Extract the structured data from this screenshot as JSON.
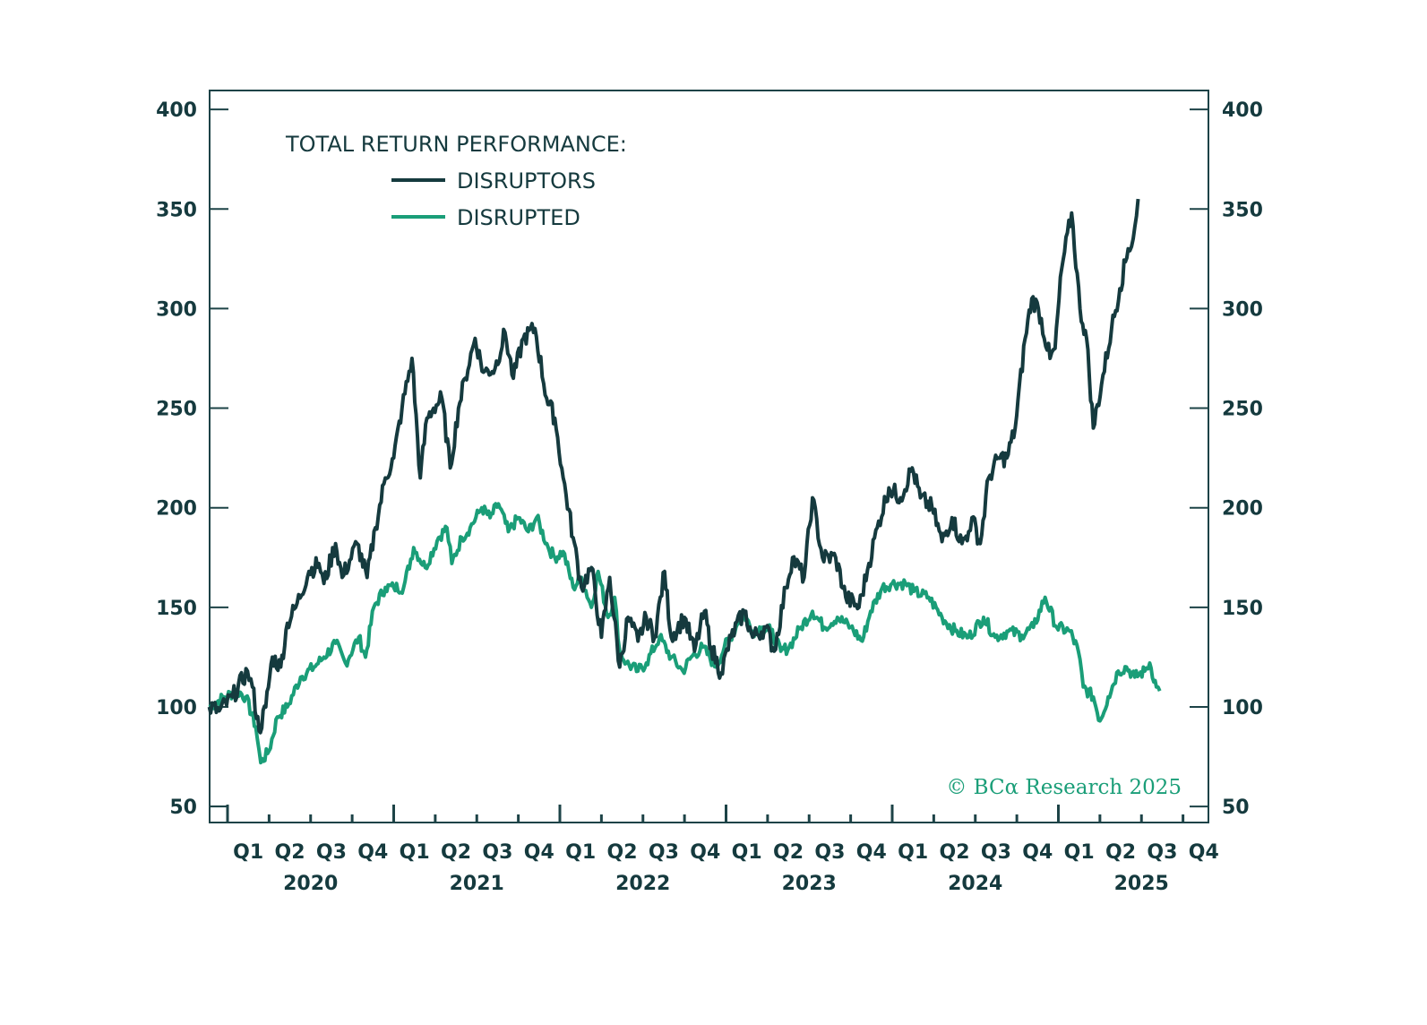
{
  "chart_data": {
    "type": "line",
    "title": "TOTAL RETURN PERFORMANCE:",
    "xlabel": "",
    "ylabel": "",
    "ylim": [
      50,
      400
    ],
    "yticks": [
      50,
      100,
      150,
      200,
      250,
      300,
      350,
      400
    ],
    "yticks_right": [
      50,
      100,
      150,
      200,
      250,
      300,
      350,
      400
    ],
    "xlim": [
      2019.89,
      2025.9
    ],
    "x_unit": "decimal year",
    "x_quarter_labels": [
      "Q1",
      "Q2",
      "Q3",
      "Q4",
      "Q1",
      "Q2",
      "Q3",
      "Q4",
      "Q1",
      "Q2",
      "Q3",
      "Q4",
      "Q1",
      "Q2",
      "Q3",
      "Q4",
      "Q1",
      "Q2",
      "Q3",
      "Q4",
      "Q1",
      "Q2",
      "Q3",
      "Q4"
    ],
    "x_year_labels": [
      "2020",
      "2021",
      "2022",
      "2023",
      "2024",
      "2025"
    ],
    "grid": false,
    "legend": {
      "placement": "top-left",
      "title": "TOTAL RETURN PERFORMANCE:",
      "entries": [
        "DISRUPTORS",
        "DISRUPTED"
      ]
    },
    "annotation": "© BCα Research 2025",
    "colors": {
      "disruptors": "#153a3e",
      "disrupted": "#1a9e78",
      "axis": "#1d4347"
    },
    "series": [
      {
        "name": "DISRUPTORS",
        "x": [
          2019.89,
          2019.95,
          2020.03,
          2020.12,
          2020.15,
          2020.19,
          2020.23,
          2020.27,
          2020.32,
          2020.36,
          2020.41,
          2020.49,
          2020.55,
          2020.58,
          2020.65,
          2020.69,
          2020.78,
          2020.84,
          2020.89,
          2020.95,
          2021.0,
          2021.05,
          2021.11,
          2021.16,
          2021.2,
          2021.24,
          2021.29,
          2021.34,
          2021.39,
          2021.43,
          2021.49,
          2021.54,
          2021.61,
          2021.67,
          2021.72,
          2021.78,
          2021.85,
          2021.92,
          2021.97,
          2022.02,
          2022.08,
          2022.13,
          2022.19,
          2022.25,
          2022.3,
          2022.36,
          2022.41,
          2022.47,
          2022.52,
          2022.57,
          2022.63,
          2022.67,
          2022.75,
          2022.81,
          2022.87,
          2022.91,
          2022.97,
          2023.03,
          2023.11,
          2023.16,
          2023.24,
          2023.29,
          2023.36,
          2023.4,
          2023.47,
          2023.52,
          2023.58,
          2023.66,
          2023.72,
          2023.8,
          2023.86,
          2023.91,
          2023.98,
          2024.05,
          2024.12,
          2024.17,
          2024.24,
          2024.3,
          2024.36,
          2024.42,
          2024.46,
          2024.48,
          2024.53,
          2024.58,
          2024.64,
          2024.69,
          2024.74,
          2024.8,
          2024.84,
          2024.88,
          2024.95,
          2024.98,
          2025.02,
          2025.08,
          2025.13,
          2025.17,
          2025.21,
          2025.26,
          2025.32,
          2025.37,
          2025.42,
          2025.45,
          2025.48
        ],
        "y": [
          100,
          98,
          105,
          118,
          110,
          88,
          100,
          125,
          120,
          142,
          150,
          168,
          172,
          162,
          182,
          165,
          182,
          165,
          190,
          215,
          225,
          250,
          275,
          215,
          245,
          250,
          255,
          220,
          250,
          265,
          285,
          268,
          270,
          288,
          265,
          285,
          290,
          255,
          245,
          215,
          185,
          160,
          170,
          135,
          165,
          120,
          145,
          133,
          145,
          135,
          168,
          135,
          145,
          128,
          148,
          130,
          117,
          135,
          148,
          135,
          140,
          128,
          160,
          175,
          165,
          205,
          175,
          175,
          155,
          150,
          172,
          190,
          210,
          205,
          220,
          205,
          200,
          183,
          195,
          182,
          188,
          195,
          182,
          215,
          225,
          225,
          240,
          285,
          305,
          300,
          275,
          280,
          320,
          348,
          300,
          285,
          240,
          262,
          290,
          310,
          330,
          335,
          355
        ]
      },
      {
        "name": "DISRUPTED",
        "x": [
          2019.89,
          2019.98,
          2020.06,
          2020.11,
          2020.17,
          2020.2,
          2020.25,
          2020.3,
          2020.36,
          2020.44,
          2020.52,
          2020.58,
          2020.65,
          2020.71,
          2020.79,
          2020.83,
          2020.88,
          2020.95,
          2021.0,
          2021.06,
          2021.12,
          2021.19,
          2021.27,
          2021.32,
          2021.35,
          2021.41,
          2021.46,
          2021.53,
          2021.58,
          2021.63,
          2021.69,
          2021.75,
          2021.81,
          2021.86,
          2021.93,
          2021.97,
          2022.02,
          2022.08,
          2022.13,
          2022.19,
          2022.23,
          2022.29,
          2022.33,
          2022.36,
          2022.4,
          2022.47,
          2022.52,
          2022.6,
          2022.67,
          2022.74,
          2022.79,
          2022.86,
          2022.94,
          2022.99,
          2023.06,
          2023.1,
          2023.16,
          2023.22,
          2023.27,
          2023.33,
          2023.38,
          2023.45,
          2023.52,
          2023.59,
          2023.67,
          2023.75,
          2023.82,
          2023.87,
          2023.94,
          2024.0,
          2024.08,
          2024.13,
          2024.22,
          2024.3,
          2024.38,
          2024.46,
          2024.55,
          2024.62,
          2024.7,
          2024.78,
          2024.85,
          2024.92,
          2024.99,
          2025.07,
          2025.12,
          2025.15,
          2025.21,
          2025.25,
          2025.3,
          2025.36,
          2025.41,
          2025.46,
          2025.52,
          2025.55,
          2025.59,
          2025.61
        ],
        "y": [
          100,
          105,
          108,
          105,
          90,
          72,
          78,
          95,
          100,
          115,
          120,
          125,
          132,
          122,
          135,
          125,
          150,
          160,
          160,
          160,
          180,
          170,
          185,
          190,
          172,
          185,
          190,
          200,
          195,
          202,
          188,
          195,
          188,
          195,
          180,
          175,
          178,
          160,
          165,
          150,
          168,
          145,
          155,
          128,
          122,
          118,
          122,
          135,
          125,
          118,
          125,
          130,
          120,
          130,
          140,
          148,
          138,
          140,
          138,
          128,
          130,
          140,
          148,
          140,
          145,
          140,
          133,
          148,
          160,
          162,
          162,
          158,
          155,
          145,
          138,
          135,
          145,
          135,
          138,
          136,
          140,
          155,
          140,
          138,
          128,
          110,
          105,
          93,
          105,
          118,
          120,
          115,
          118,
          122,
          110,
          108
        ]
      }
    ]
  }
}
